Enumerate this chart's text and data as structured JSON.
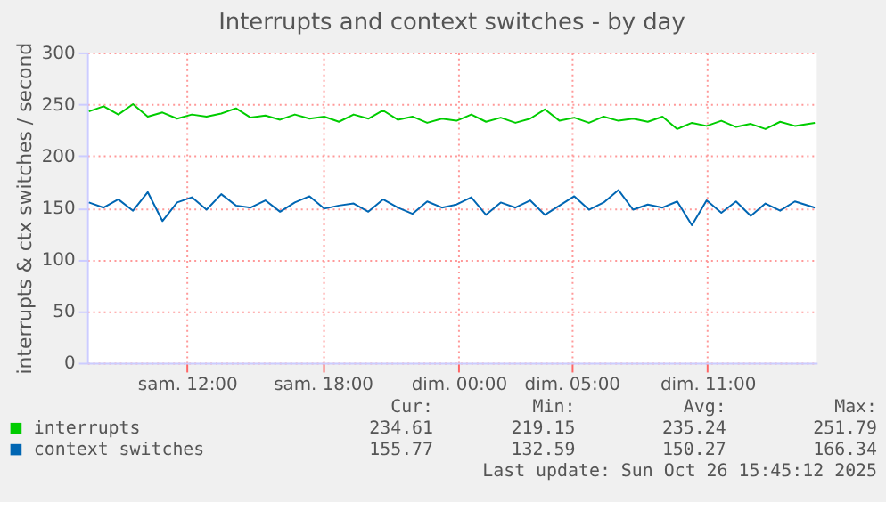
{
  "chart_data": {
    "type": "line",
    "title": "Interrupts and context switches - by day",
    "ylabel": "interrupts & ctx switches / second",
    "x": [
      "2025-10-25T07:40",
      "2025-10-25T08:19",
      "2025-10-25T08:58",
      "2025-10-25T09:37",
      "2025-10-25T10:16",
      "2025-10-25T10:55",
      "2025-10-25T11:34",
      "2025-10-25T12:13",
      "2025-10-25T12:52",
      "2025-10-25T13:31",
      "2025-10-25T14:10",
      "2025-10-25T14:49",
      "2025-10-25T15:28",
      "2025-10-25T16:07",
      "2025-10-25T16:46",
      "2025-10-25T17:25",
      "2025-10-25T18:04",
      "2025-10-25T18:43",
      "2025-10-25T19:22",
      "2025-10-25T20:01",
      "2025-10-25T20:40",
      "2025-10-25T21:19",
      "2025-10-25T21:58",
      "2025-10-25T22:37",
      "2025-10-25T23:16",
      "2025-10-25T23:55",
      "2025-10-26T00:34",
      "2025-10-26T01:13",
      "2025-10-26T01:52",
      "2025-10-26T02:31",
      "2025-10-26T03:10",
      "2025-10-26T03:49",
      "2025-10-26T04:28",
      "2025-10-26T05:07",
      "2025-10-26T05:46",
      "2025-10-26T06:25",
      "2025-10-26T07:04",
      "2025-10-26T07:43",
      "2025-10-26T08:22",
      "2025-10-26T09:01",
      "2025-10-26T09:40",
      "2025-10-26T10:19",
      "2025-10-26T10:58",
      "2025-10-26T11:37",
      "2025-10-26T12:16",
      "2025-10-26T12:55",
      "2025-10-26T13:34",
      "2025-10-26T14:13",
      "2025-10-26T14:52",
      "2025-10-26T15:45"
    ],
    "series": [
      {
        "name": "interrupts",
        "color": "#00cc00",
        "values": [
          243,
          248,
          240,
          250,
          238,
          242,
          236,
          240,
          238,
          241,
          246,
          237,
          239,
          235,
          240,
          236,
          238,
          233,
          240,
          236,
          244,
          235,
          238,
          232,
          236,
          234,
          240,
          233,
          237,
          232,
          236,
          245,
          234,
          237,
          232,
          238,
          234,
          236,
          233,
          238,
          226,
          232,
          229,
          234,
          228,
          231,
          226,
          233,
          229,
          232
        ]
      },
      {
        "name": "context switches",
        "color": "#0066b3",
        "values": [
          155,
          150,
          158,
          147,
          165,
          137,
          155,
          160,
          148,
          163,
          152,
          150,
          157,
          146,
          155,
          161,
          149,
          152,
          154,
          146,
          158,
          150,
          144,
          156,
          150,
          153,
          160,
          143,
          155,
          150,
          157,
          143,
          152,
          161,
          148,
          155,
          167,
          148,
          153,
          150,
          156,
          133,
          157,
          145,
          156,
          142,
          154,
          147,
          156,
          150
        ]
      }
    ],
    "xlim": [
      "2025-10-25T07:35",
      "2025-10-26T15:50"
    ],
    "xticks": [
      {
        "value": "2025-10-25T12:00",
        "label": "sam. 12:00"
      },
      {
        "value": "2025-10-25T18:00",
        "label": "sam. 18:00"
      },
      {
        "value": "2025-10-26T00:00",
        "label": "dim. 00:00"
      },
      {
        "value": "2025-10-26T05:00",
        "label": "dim. 05:00"
      },
      {
        "value": "2025-10-26T11:00",
        "label": "dim. 11:00"
      }
    ],
    "ylim": [
      0,
      300
    ],
    "yticks": [
      0,
      50,
      100,
      150,
      200,
      250,
      300
    ],
    "grid": true,
    "legend": "bottom",
    "marker": "none",
    "line_style": "solid",
    "annotations": [
      "Cur:",
      "Min:",
      "Avg:",
      "Max:",
      "234.61",
      "219.15",
      "235.24",
      "251.79",
      "155.77",
      "132.59",
      "150.27",
      "166.34",
      "Last update: Sun Oct 26 15:45:12 2025"
    ]
  }
}
